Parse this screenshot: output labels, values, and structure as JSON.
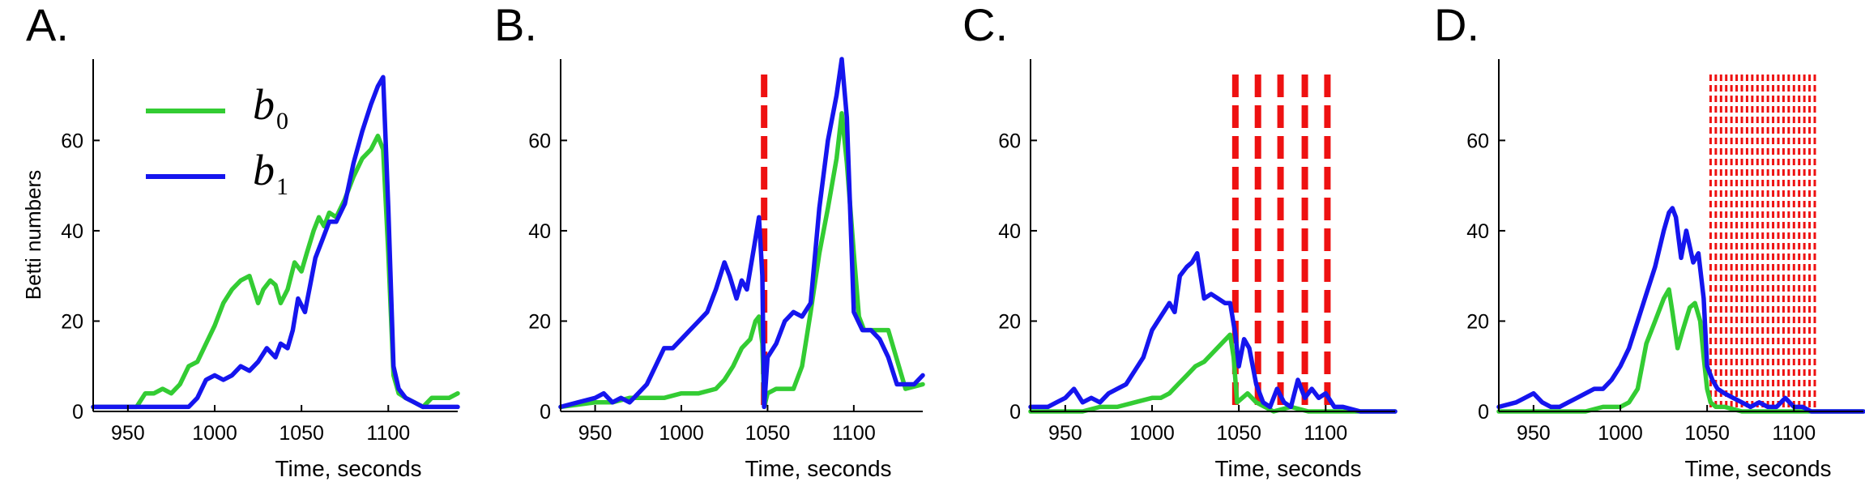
{
  "colors": {
    "b0": "#33cc33",
    "b1": "#1515ee",
    "marker": "#ee1111",
    "axis": "#000000"
  },
  "legend": {
    "entries": [
      {
        "symbol": "b",
        "subscript": "0",
        "series": "b0"
      },
      {
        "symbol": "b",
        "subscript": "1",
        "series": "b1"
      }
    ]
  },
  "chart_data": [
    {
      "type": "line",
      "panel_label": "A.",
      "ylabel": "Betti numbers",
      "xlabel": "Time, seconds",
      "xlim": [
        930,
        1140
      ],
      "ylim": [
        0,
        78
      ],
      "xticks": [
        950,
        1000,
        1050,
        1100
      ],
      "yticks": [
        0,
        20,
        40,
        60
      ],
      "markers": [],
      "series": [
        {
          "name": "b0",
          "x": [
            930,
            955,
            960,
            965,
            970,
            975,
            980,
            985,
            990,
            995,
            1000,
            1005,
            1010,
            1015,
            1020,
            1025,
            1028,
            1032,
            1035,
            1038,
            1042,
            1046,
            1050,
            1053,
            1057,
            1060,
            1063,
            1066,
            1070,
            1075,
            1080,
            1085,
            1090,
            1094,
            1097,
            1100,
            1103,
            1106,
            1110,
            1115,
            1120,
            1125,
            1130,
            1135,
            1140
          ],
          "values": [
            1,
            1,
            4,
            4,
            5,
            4,
            6,
            10,
            11,
            15,
            19,
            24,
            27,
            29,
            30,
            24,
            27,
            29,
            28,
            24,
            27,
            33,
            31,
            35,
            40,
            43,
            41,
            44,
            43,
            47,
            52,
            56,
            58,
            61,
            58,
            35,
            8,
            4,
            3,
            2,
            1,
            3,
            3,
            3,
            4
          ]
        },
        {
          "name": "b1",
          "x": [
            930,
            985,
            990,
            995,
            1000,
            1005,
            1010,
            1015,
            1020,
            1025,
            1030,
            1035,
            1038,
            1042,
            1045,
            1048,
            1052,
            1055,
            1058,
            1062,
            1066,
            1070,
            1075,
            1080,
            1085,
            1090,
            1094,
            1097,
            1100,
            1103,
            1106,
            1110,
            1115,
            1120,
            1130,
            1140
          ],
          "values": [
            1,
            1,
            3,
            7,
            8,
            7,
            8,
            10,
            9,
            11,
            14,
            12,
            15,
            14,
            18,
            25,
            22,
            28,
            34,
            38,
            42,
            42,
            46,
            55,
            62,
            68,
            72,
            74,
            45,
            10,
            5,
            3,
            2,
            1,
            1,
            1
          ]
        }
      ]
    },
    {
      "type": "line",
      "panel_label": "B.",
      "ylabel": "",
      "xlabel": "Time, seconds",
      "xlim": [
        930,
        1140
      ],
      "ylim": [
        0,
        78
      ],
      "xticks": [
        950,
        1000,
        1050,
        1100
      ],
      "yticks": [
        0,
        20,
        40,
        60
      ],
      "markers": [
        1048
      ],
      "series": [
        {
          "name": "b0",
          "x": [
            930,
            950,
            960,
            970,
            980,
            990,
            1000,
            1010,
            1020,
            1025,
            1030,
            1035,
            1040,
            1043,
            1045,
            1047,
            1048,
            1050,
            1055,
            1060,
            1065,
            1070,
            1075,
            1080,
            1085,
            1090,
            1093,
            1096,
            1100,
            1103,
            1106,
            1110,
            1115,
            1120,
            1130,
            1140
          ],
          "values": [
            1,
            2,
            2,
            3,
            3,
            3,
            4,
            4,
            5,
            7,
            10,
            14,
            16,
            20,
            21,
            15,
            1,
            4,
            5,
            5,
            5,
            10,
            22,
            35,
            45,
            56,
            66,
            55,
            35,
            21,
            18,
            18,
            18,
            18,
            5,
            6
          ]
        },
        {
          "name": "b1",
          "x": [
            930,
            940,
            950,
            955,
            960,
            965,
            970,
            975,
            980,
            985,
            990,
            995,
            1000,
            1005,
            1010,
            1015,
            1020,
            1025,
            1028,
            1032,
            1035,
            1038,
            1042,
            1045,
            1047,
            1048,
            1050,
            1055,
            1060,
            1065,
            1070,
            1075,
            1080,
            1085,
            1090,
            1093,
            1096,
            1100,
            1105,
            1110,
            1115,
            1120,
            1125,
            1130,
            1135,
            1140
          ],
          "values": [
            1,
            2,
            3,
            4,
            2,
            3,
            2,
            4,
            6,
            10,
            14,
            14,
            16,
            18,
            20,
            22,
            27,
            33,
            30,
            25,
            29,
            27,
            36,
            43,
            30,
            1,
            12,
            15,
            20,
            22,
            21,
            24,
            45,
            60,
            70,
            78,
            65,
            22,
            18,
            18,
            16,
            12,
            6,
            6,
            6,
            8
          ]
        }
      ]
    },
    {
      "type": "line",
      "panel_label": "C.",
      "ylabel": "",
      "xlabel": "Time, seconds",
      "xlim": [
        930,
        1140
      ],
      "ylim": [
        0,
        78
      ],
      "xticks": [
        950,
        1000,
        1050,
        1100
      ],
      "yticks": [
        0,
        20,
        40,
        60
      ],
      "markers": [
        1048,
        1061,
        1074,
        1088,
        1101
      ],
      "series": [
        {
          "name": "b0",
          "x": [
            930,
            960,
            970,
            980,
            990,
            1000,
            1005,
            1010,
            1015,
            1020,
            1025,
            1030,
            1035,
            1040,
            1045,
            1047,
            1049,
            1052,
            1055,
            1060,
            1065,
            1070,
            1080,
            1090,
            1100,
            1110,
            1120,
            1140
          ],
          "values": [
            0,
            0,
            1,
            1,
            2,
            3,
            3,
            4,
            6,
            8,
            10,
            11,
            13,
            15,
            17,
            12,
            2,
            3,
            4,
            2,
            1,
            0,
            1,
            0,
            0,
            0,
            0,
            0
          ]
        },
        {
          "name": "b1",
          "x": [
            930,
            940,
            945,
            950,
            955,
            960,
            965,
            970,
            975,
            980,
            985,
            990,
            995,
            1000,
            1005,
            1010,
            1013,
            1016,
            1020,
            1023,
            1026,
            1030,
            1034,
            1038,
            1042,
            1045,
            1048,
            1050,
            1053,
            1056,
            1060,
            1064,
            1068,
            1072,
            1076,
            1080,
            1084,
            1088,
            1092,
            1096,
            1100,
            1105,
            1110,
            1120,
            1140
          ],
          "values": [
            1,
            1,
            2,
            3,
            5,
            2,
            3,
            2,
            4,
            5,
            6,
            9,
            12,
            18,
            21,
            24,
            22,
            30,
            32,
            33,
            35,
            25,
            26,
            25,
            24,
            24,
            17,
            10,
            16,
            14,
            6,
            2,
            1,
            5,
            2,
            1,
            7,
            3,
            5,
            3,
            4,
            1,
            1,
            0,
            0
          ]
        }
      ]
    },
    {
      "type": "line",
      "panel_label": "D.",
      "ylabel": "",
      "xlabel": "Time, seconds",
      "xlim": [
        930,
        1140
      ],
      "ylim": [
        0,
        78
      ],
      "xticks": [
        950,
        1000,
        1050,
        1100
      ],
      "yticks": [
        0,
        20,
        40,
        60
      ],
      "markers": [
        1052,
        1055,
        1058,
        1061,
        1064,
        1067,
        1070,
        1073,
        1076,
        1079,
        1082,
        1085,
        1088,
        1091,
        1094,
        1097,
        1100,
        1103,
        1106,
        1109,
        1112
      ],
      "series": [
        {
          "name": "b0",
          "x": [
            930,
            960,
            980,
            990,
            1000,
            1005,
            1010,
            1015,
            1020,
            1025,
            1028,
            1030,
            1033,
            1036,
            1040,
            1043,
            1046,
            1048,
            1050,
            1052,
            1055,
            1060,
            1070,
            1080,
            1090,
            1100,
            1140
          ],
          "values": [
            0,
            0,
            0,
            1,
            1,
            2,
            5,
            15,
            20,
            25,
            27,
            22,
            14,
            18,
            23,
            24,
            20,
            12,
            5,
            2,
            1,
            1,
            0,
            0,
            0,
            0,
            0
          ]
        },
        {
          "name": "b1",
          "x": [
            930,
            940,
            945,
            950,
            955,
            960,
            965,
            970,
            975,
            980,
            985,
            990,
            995,
            1000,
            1005,
            1010,
            1015,
            1020,
            1025,
            1028,
            1030,
            1032,
            1035,
            1038,
            1042,
            1045,
            1048,
            1050,
            1053,
            1056,
            1060,
            1065,
            1070,
            1075,
            1080,
            1085,
            1090,
            1095,
            1100,
            1105,
            1110,
            1120,
            1130,
            1140
          ],
          "values": [
            1,
            2,
            3,
            4,
            2,
            1,
            1,
            2,
            3,
            4,
            5,
            5,
            7,
            10,
            14,
            20,
            26,
            32,
            40,
            44,
            45,
            43,
            34,
            40,
            33,
            35,
            25,
            10,
            7,
            5,
            4,
            3,
            2,
            1,
            2,
            1,
            1,
            3,
            1,
            1,
            0,
            0,
            0,
            0
          ]
        }
      ]
    }
  ]
}
